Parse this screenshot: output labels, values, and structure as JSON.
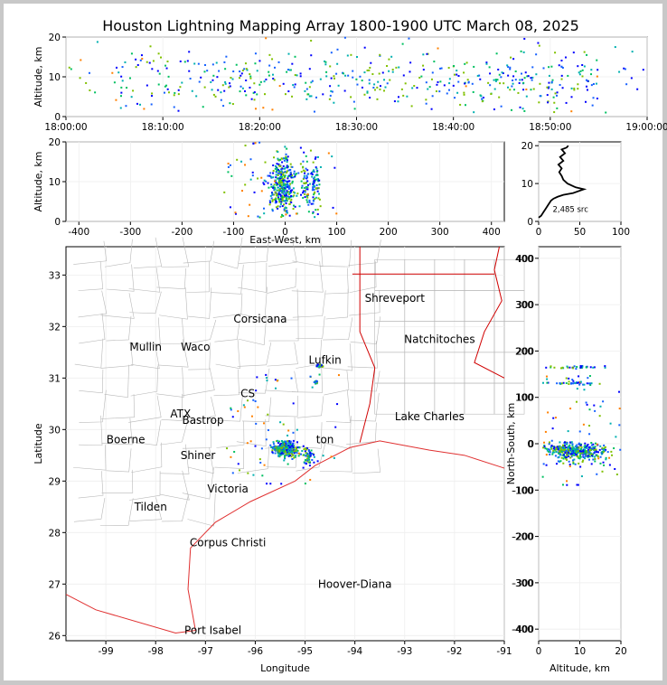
{
  "title": "Houston Lightning Mapping Array 1800-1900 UTC March 08, 2025",
  "colors": {
    "boundary": "#b8b8b8",
    "coast": "#e03030",
    "state": "#d00000",
    "source_palette": [
      "#0000ff",
      "#1560ff",
      "#00b0b0",
      "#00c060",
      "#80c000",
      "#ff8000",
      "#ff0000",
      "#ff00ff"
    ]
  },
  "chart_data": [
    {
      "type": "scatter",
      "name": "time-height",
      "xlabel": "",
      "ylabel": "Altitude, km",
      "x_ticks": [
        "18:00:00",
        "18:10:00",
        "18:20:00",
        "18:30:00",
        "18:40:00",
        "18:50:00",
        "19:00:00"
      ],
      "xlim_minutes": [
        0,
        60
      ],
      "ylim": [
        0,
        20
      ],
      "y_ticks": [
        0,
        10,
        20
      ]
    },
    {
      "type": "scatter",
      "name": "east-west-height",
      "xlabel": "East-West, km",
      "ylabel": "Altitude, km",
      "xlim": [
        -425,
        425
      ],
      "ylim": [
        0,
        20
      ],
      "x_ticks": [
        -400,
        -300,
        -200,
        -100,
        0,
        100,
        200,
        300,
        400
      ],
      "y_ticks": [
        0,
        10,
        20
      ]
    },
    {
      "type": "line",
      "name": "altitude-histogram",
      "xlim": [
        0,
        100
      ],
      "ylim": [
        0,
        21
      ],
      "x_ticks": [
        0,
        50,
        100
      ],
      "y_ticks": [
        0,
        10,
        20
      ],
      "annotation": "2,485 src",
      "profile": [
        [
          0,
          1
        ],
        [
          3,
          1.5
        ],
        [
          6,
          2.5
        ],
        [
          9,
          3.5
        ],
        [
          12,
          4.5
        ],
        [
          15,
          5.5
        ],
        [
          18,
          6
        ],
        [
          23,
          6.5
        ],
        [
          30,
          7
        ],
        [
          42,
          7.5
        ],
        [
          55,
          8.5
        ],
        [
          45,
          9
        ],
        [
          35,
          10
        ],
        [
          30,
          11
        ],
        [
          28,
          12
        ],
        [
          25,
          13
        ],
        [
          28,
          14
        ],
        [
          24,
          15
        ],
        [
          30,
          16
        ],
        [
          26,
          17
        ],
        [
          32,
          18
        ],
        [
          28,
          19
        ],
        [
          34,
          19.5
        ],
        [
          36,
          20
        ]
      ]
    },
    {
      "type": "scatter",
      "name": "plan-view",
      "xlabel": "Longitude",
      "ylabel": "Latitude",
      "xlim": [
        -99.8,
        -91
      ],
      "ylim": [
        25.9,
        33.55
      ],
      "x_ticks": [
        -99,
        -98,
        -97,
        -96,
        -95,
        -94,
        -93,
        -92,
        -91
      ],
      "y_ticks": [
        26,
        27,
        28,
        29,
        30,
        31,
        32,
        33
      ],
      "cities": [
        {
          "name": "Shreveport",
          "lon": -93.2,
          "lat": 32.55,
          "color": "#000000"
        },
        {
          "name": "Corsicana",
          "lon": -95.9,
          "lat": 32.15,
          "color": "#000000"
        },
        {
          "name": "Mullin",
          "lon": -98.2,
          "lat": 31.6,
          "color": "#ff8040"
        },
        {
          "name": "Waco",
          "lon": -97.2,
          "lat": 31.6,
          "color": "#000000"
        },
        {
          "name": "Natchitoches",
          "lon": -92.3,
          "lat": 31.75,
          "color": "#000000"
        },
        {
          "name": "Lufkin",
          "lon": -94.6,
          "lat": 31.35,
          "color": "#000000"
        },
        {
          "name": "CS",
          "lon": -96.15,
          "lat": 30.7,
          "color": "#000000"
        },
        {
          "name": "ATX",
          "lon": -97.5,
          "lat": 30.3,
          "color": "#ff8040"
        },
        {
          "name": "Bastrop",
          "lon": -97.05,
          "lat": 30.18,
          "color": "#000000"
        },
        {
          "name": "Lake Charles",
          "lon": -92.5,
          "lat": 30.25,
          "color": "#000000"
        },
        {
          "name": "Boerne",
          "lon": -98.6,
          "lat": 29.8,
          "color": "#000000"
        },
        {
          "name": "ton",
          "lon": -94.6,
          "lat": 29.8,
          "color": "#ffa040"
        },
        {
          "name": "Shiner",
          "lon": -97.15,
          "lat": 29.5,
          "color": "#000000"
        },
        {
          "name": "Victoria",
          "lon": -96.55,
          "lat": 28.85,
          "color": "#000000"
        },
        {
          "name": "Tilden",
          "lon": -98.1,
          "lat": 28.5,
          "color": "#000000"
        },
        {
          "name": "Corpus Christi",
          "lon": -96.55,
          "lat": 27.8,
          "color": "#000000"
        },
        {
          "name": "Hoover-Diana",
          "lon": -94.0,
          "lat": 27.0,
          "color": "#0000ff"
        },
        {
          "name": "Port Isabel",
          "lon": -96.85,
          "lat": 26.1,
          "color": "#000000"
        }
      ]
    },
    {
      "type": "scatter",
      "name": "north-south-height",
      "xlabel": "Altitude, km",
      "ylabel": "North-South, km",
      "xlim": [
        0,
        20
      ],
      "ylim": [
        -425,
        425
      ],
      "x_ticks": [
        0,
        10,
        20
      ],
      "y_ticks": [
        -400,
        -300,
        -200,
        -100,
        0,
        100,
        200,
        300,
        400
      ]
    }
  ]
}
